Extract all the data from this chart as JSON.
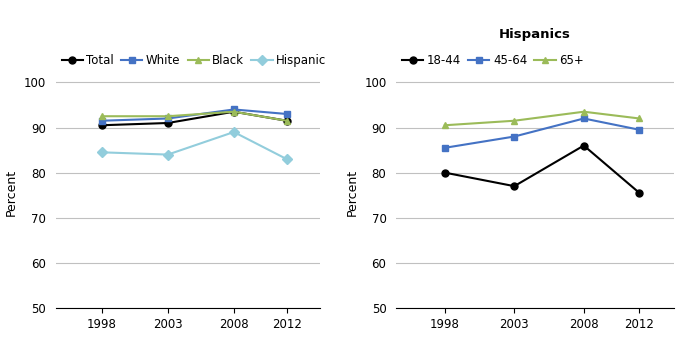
{
  "years": [
    1998,
    2003,
    2008,
    2012
  ],
  "left_chart": {
    "series": [
      {
        "label": "Total",
        "color": "#000000",
        "marker": "o",
        "markerfacecolor": "#000000",
        "values": [
          90.5,
          91.0,
          93.5,
          91.5
        ]
      },
      {
        "label": "White",
        "color": "#4472C4",
        "marker": "s",
        "markerfacecolor": "#4472C4",
        "values": [
          91.5,
          92.0,
          94.0,
          93.0
        ]
      },
      {
        "label": "Black",
        "color": "#9BBB59",
        "marker": "^",
        "markerfacecolor": "#9BBB59",
        "values": [
          92.5,
          92.5,
          93.5,
          91.5
        ]
      },
      {
        "label": "Hispanic",
        "color": "#92CDDC",
        "marker": "D",
        "markerfacecolor": "#92CDDC",
        "values": [
          84.5,
          84.0,
          89.0,
          83.0
        ]
      }
    ],
    "ylabel": "Percent",
    "ylim": [
      50,
      101
    ],
    "yticks": [
      50,
      60,
      70,
      80,
      90,
      100
    ]
  },
  "right_chart": {
    "title": "Hispanics",
    "series": [
      {
        "label": "18-44",
        "color": "#000000",
        "marker": "o",
        "markerfacecolor": "#000000",
        "values": [
          80.0,
          77.0,
          86.0,
          75.5
        ]
      },
      {
        "label": "45-64",
        "color": "#4472C4",
        "marker": "s",
        "markerfacecolor": "#4472C4",
        "values": [
          85.5,
          88.0,
          92.0,
          89.5
        ]
      },
      {
        "label": "65+",
        "color": "#9BBB59",
        "marker": "^",
        "markerfacecolor": "#9BBB59",
        "values": [
          90.5,
          91.5,
          93.5,
          92.0
        ]
      }
    ],
    "ylabel": "Percent",
    "ylim": [
      50,
      101
    ],
    "yticks": [
      50,
      60,
      70,
      80,
      90,
      100
    ]
  },
  "line_width": 1.5,
  "marker_size": 5,
  "grid_color": "#C0C0C0",
  "background_color": "#FFFFFF",
  "font_size_legend": 8.5,
  "font_size_title": 9.5,
  "font_size_tick": 8.5,
  "font_size_ylabel": 9
}
